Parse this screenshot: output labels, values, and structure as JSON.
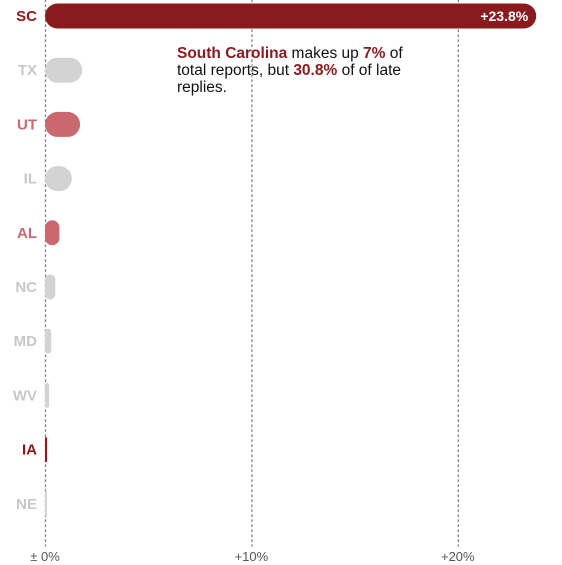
{
  "colors": {
    "highlight": "#8b1a1f",
    "medium": "#c9686e",
    "neutral": "#d3d3d3",
    "neutral_label": "#c8c8c8",
    "grid": "#888888"
  },
  "annotation": {
    "state_name": "South Carolina",
    "text_1": " makes up ",
    "share_total": "7%",
    "text_2": " of total reports, but ",
    "share_late": "30.8%",
    "text_3": " of of late replies."
  },
  "chart_data": {
    "type": "bar",
    "orientation": "horizontal",
    "categories": [
      "SC",
      "TX",
      "UT",
      "IL",
      "AL",
      "NC",
      "MD",
      "WV",
      "IA",
      "NE"
    ],
    "values": [
      23.8,
      1.8,
      1.7,
      1.3,
      0.7,
      0.5,
      0.3,
      0.2,
      0.1,
      0.05
    ],
    "emphasis": [
      "highlight",
      "neutral",
      "medium",
      "neutral",
      "medium",
      "neutral",
      "neutral",
      "neutral",
      "highlight",
      "neutral"
    ],
    "value_labels": [
      "+23.8%",
      "",
      "",
      "",
      "",
      "",
      "",
      "",
      "",
      ""
    ],
    "xlim": [
      0,
      25
    ],
    "xticks": [
      0,
      10,
      20
    ],
    "xtick_labels": [
      "± 0%",
      "+10%",
      "+20%"
    ],
    "grid": "vertical-dotted",
    "legend": "none"
  }
}
